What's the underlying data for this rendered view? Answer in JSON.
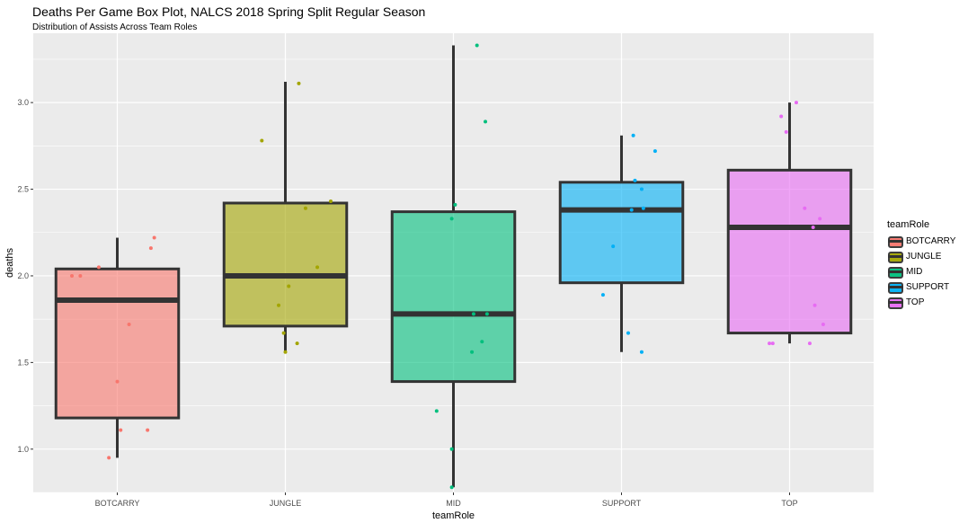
{
  "chart_data": {
    "type": "box",
    "title": "Deaths Per Game Box Plot, NALCS 2018 Spring Split Regular Season",
    "subtitle": "Distribution of Assists Across Team Roles",
    "xlabel": "teamRole",
    "ylabel": "deaths",
    "ylim": [
      0.75,
      3.4
    ],
    "yticks": [
      "1.0",
      "1.5",
      "2.0",
      "2.5",
      "3.0"
    ],
    "grid": true,
    "legend": {
      "title": "teamRole",
      "placement": "right"
    },
    "categories": [
      "BOTCARRY",
      "JUNGLE",
      "MID",
      "SUPPORT",
      "TOP"
    ],
    "colors": [
      "#F8766D",
      "#A3A500",
      "#00BF7D",
      "#00B0F6",
      "#E76BF3"
    ],
    "box_stats": [
      {
        "role": "BOTCARRY",
        "whisker_low": 0.95,
        "q1": 1.18,
        "median": 1.86,
        "q3": 2.04,
        "whisker_high": 2.22
      },
      {
        "role": "JUNGLE",
        "whisker_low": 1.56,
        "q1": 1.71,
        "median": 2.0,
        "q3": 2.42,
        "whisker_high": 3.12
      },
      {
        "role": "MID",
        "whisker_low": 0.78,
        "q1": 1.39,
        "median": 1.78,
        "q3": 2.37,
        "whisker_high": 3.33
      },
      {
        "role": "SUPPORT",
        "whisker_low": 1.56,
        "q1": 1.96,
        "median": 2.38,
        "q3": 2.54,
        "whisker_high": 2.81
      },
      {
        "role": "TOP",
        "whisker_low": 1.61,
        "q1": 1.67,
        "median": 2.28,
        "q3": 2.61,
        "whisker_high": 3.0
      }
    ],
    "points": [
      {
        "role": "BOTCARRY",
        "values": [
          0.95,
          1.11,
          1.11,
          1.39,
          1.72,
          2.0,
          2.0,
          2.05,
          2.16,
          2.22
        ],
        "jitter": [
          -0.05,
          0.02,
          0.18,
          0.0,
          0.07,
          -0.22,
          -0.27,
          -0.11,
          0.2,
          0.22
        ]
      },
      {
        "role": "JUNGLE",
        "values": [
          1.56,
          1.61,
          1.67,
          1.83,
          1.94,
          2.05,
          2.39,
          2.43,
          2.78,
          3.11
        ],
        "jitter": [
          0.0,
          0.07,
          -0.01,
          -0.04,
          0.02,
          0.19,
          0.12,
          0.27,
          -0.14,
          0.08
        ]
      },
      {
        "role": "MID",
        "values": [
          0.78,
          1.0,
          1.22,
          1.56,
          1.62,
          1.78,
          1.78,
          2.33,
          2.41,
          2.89,
          3.33
        ],
        "jitter": [
          -0.01,
          -0.01,
          -0.1,
          0.11,
          0.17,
          0.12,
          0.2,
          -0.01,
          0.01,
          0.19,
          0.14
        ]
      },
      {
        "role": "SUPPORT",
        "values": [
          1.56,
          1.67,
          1.89,
          2.17,
          2.38,
          2.39,
          2.5,
          2.55,
          2.72,
          2.81
        ],
        "jitter": [
          0.12,
          0.04,
          -0.11,
          -0.05,
          0.06,
          0.13,
          0.12,
          0.08,
          0.2,
          0.07
        ]
      },
      {
        "role": "TOP",
        "values": [
          1.61,
          1.61,
          1.61,
          1.72,
          1.83,
          2.28,
          2.33,
          2.39,
          2.83,
          2.92,
          3.0
        ],
        "jitter": [
          -0.1,
          -0.12,
          0.12,
          0.2,
          0.15,
          0.14,
          0.18,
          0.09,
          -0.02,
          -0.05,
          0.04
        ]
      }
    ]
  }
}
